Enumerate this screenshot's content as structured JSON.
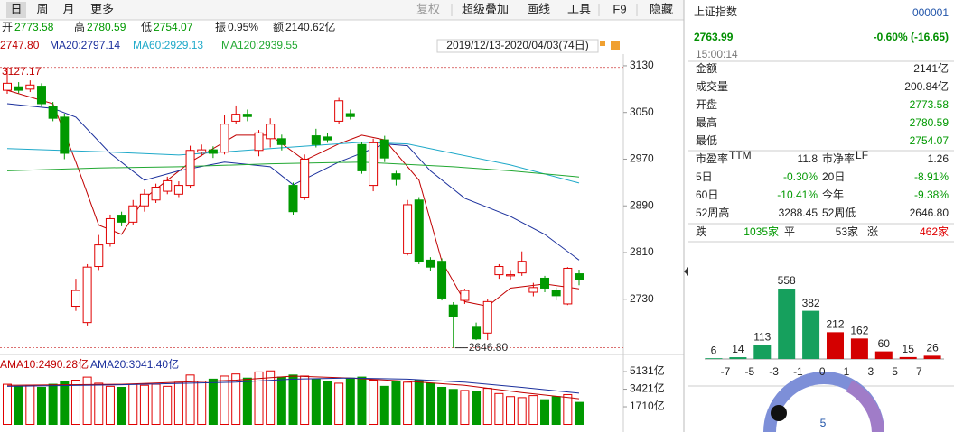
{
  "toolbar": {
    "tabs": [
      "日",
      "周",
      "月",
      "更多"
    ],
    "tools": [
      "复权",
      "超级叠加",
      "画线",
      "工具",
      "F9",
      "隐藏"
    ]
  },
  "quote_bar": [
    {
      "label": "开",
      "value": "2773.58",
      "color": "#009900"
    },
    {
      "label": "高",
      "value": "2780.59",
      "color": "#009900"
    },
    {
      "label": "低",
      "value": "2754.07",
      "color": "#009900"
    },
    {
      "label": "振",
      "value": "0.95%",
      "color": "#222222"
    },
    {
      "label": "额",
      "value": "2140.62亿",
      "color": "#222222"
    }
  ],
  "chart_data": {
    "type": "candlestick",
    "date_range": "2019/12/13-2020/04/03(74日)",
    "up_color": "#e00000",
    "down_color": "#009900",
    "open": [
      3088,
      3094,
      3090,
      3095,
      3060,
      3042,
      2718,
      2690,
      2786,
      2826,
      2874,
      2862,
      2890,
      2900,
      2915,
      2910,
      2925,
      2982,
      2986,
      2982,
      3035,
      3047,
      2985,
      3005,
      3005,
      2925,
      2905,
      3010,
      3008,
      3035,
      3048,
      2995,
      2925,
      3003,
      2945,
      2808,
      2900,
      2797,
      2795,
      2720,
      2728,
      2682,
      2672,
      2772,
      2770,
      2775,
      2742,
      2766,
      2745,
      2722,
      2773.58
    ],
    "close": [
      3100,
      3088,
      3097,
      3065,
      3040,
      2980,
      2745,
      2785,
      2823,
      2868,
      2862,
      2890,
      2910,
      2922,
      2933,
      2925,
      2985,
      2986,
      2980,
      3030,
      3047,
      3043,
      3015,
      3030,
      2995,
      2880,
      2970,
      2995,
      3003,
      3070,
      3043,
      2950,
      2998,
      2972,
      2935,
      2892,
      2795,
      2785,
      2732,
      2700,
      2745,
      2662,
      2726,
      2786,
      2772,
      2795,
      2750,
      2749,
      2736,
      2783,
      2763.99
    ],
    "high": [
      3127.17,
      3102,
      3105,
      3100,
      3068,
      3048,
      2765,
      2790,
      2840,
      2875,
      2880,
      2900,
      2918,
      2928,
      2940,
      2932,
      2993,
      2995,
      2992,
      3045,
      3062,
      3055,
      3020,
      3040,
      3012,
      2930,
      2978,
      3022,
      3015,
      3075,
      3055,
      3000,
      3005,
      3010,
      2950,
      2900,
      2905,
      2802,
      2800,
      2725,
      2748,
      2690,
      2730,
      2790,
      2780,
      2812,
      2758,
      2770,
      2750,
      2785,
      2780.59
    ],
    "low": [
      3082,
      3083,
      3085,
      3060,
      3035,
      2970,
      2710,
      2685,
      2780,
      2820,
      2855,
      2858,
      2880,
      2895,
      2910,
      2905,
      2920,
      2975,
      2972,
      2978,
      3030,
      3035,
      2975,
      2990,
      2985,
      2875,
      2900,
      2990,
      2998,
      3030,
      3038,
      2945,
      2915,
      2965,
      2925,
      2805,
      2790,
      2778,
      2728,
      2646.8,
      2722,
      2660,
      2660,
      2765,
      2762,
      2770,
      2735,
      2742,
      2728,
      2720,
      2754.07
    ],
    "ylim": [
      2640,
      3150
    ],
    "yticks": [
      2730,
      2810,
      2890,
      2970,
      3050,
      3130
    ],
    "annotations": [
      {
        "value": 3127.17,
        "label": "3127.17"
      },
      {
        "value": 2646.8,
        "label": "2646.80"
      }
    ],
    "moving_averages": [
      {
        "name": "2747.80",
        "color": "#c00000",
        "x": [
          0,
          4,
          6,
          8,
          10,
          12,
          16,
          20,
          23,
          26,
          29,
          31,
          33,
          36,
          38,
          40,
          42,
          44,
          47,
          50
        ],
        "values": [
          3088,
          3065,
          2965,
          2857,
          2841,
          2903,
          2965,
          3011,
          3011,
          2968,
          2996,
          3011,
          3003,
          2934,
          2795,
          2726,
          2718,
          2749,
          2756,
          2747.8
        ]
      },
      {
        "name": "MA20:2797.14",
        "color": "#1a2f9c",
        "x": [
          0,
          4,
          6,
          9,
          12,
          15,
          19,
          23,
          25,
          29,
          33,
          35,
          37,
          40,
          44,
          47,
          50
        ],
        "values": [
          3065,
          3057,
          3042,
          2980,
          2934,
          2950,
          2965,
          2957,
          2926,
          2965,
          2996,
          2993,
          2950,
          2903,
          2872,
          2841,
          2797.14
        ]
      },
      {
        "name": "MA60:2929.13",
        "color": "#1fa9c9",
        "x": [
          0,
          8,
          15,
          23,
          31,
          35,
          39,
          44,
          50
        ],
        "values": [
          2988,
          2983,
          2977,
          2988,
          2999,
          2996,
          2980,
          2960,
          2929.13
        ]
      },
      {
        "name": "MA120:2939.55",
        "color": "#22a832",
        "x": [
          0,
          8,
          15,
          23,
          31,
          39,
          44,
          50
        ],
        "values": [
          2950,
          2955,
          2957,
          2962,
          2965,
          2957,
          2950,
          2939.55
        ]
      }
    ],
    "volume": {
      "values": [
        3900,
        3700,
        3800,
        3600,
        3900,
        4200,
        4300,
        4600,
        4000,
        3700,
        3600,
        3900,
        3800,
        3900,
        3700,
        4100,
        4800,
        4200,
        4400,
        4700,
        4900,
        4500,
        5100,
        5200,
        4600,
        4800,
        4700,
        4400,
        4200,
        4000,
        4500,
        4600,
        4300,
        3700,
        4200,
        4100,
        4300,
        4000,
        3600,
        3400,
        3300,
        3200,
        3500,
        3000,
        2700,
        2600,
        2800,
        2400,
        2700,
        2900,
        2140.62
      ],
      "ylim": [
        0,
        5750
      ],
      "yticks": [
        {
          "value": 1710,
          "label": "1710亿"
        },
        {
          "value": 3421,
          "label": "3421亿"
        },
        {
          "value": 5131,
          "label": "5131亿"
        }
      ],
      "averages": [
        {
          "name": "AMA10:2490.28亿",
          "color": "#c00000",
          "x": [
            0,
            10,
            20,
            25,
            30,
            35,
            40,
            45,
            50
          ],
          "values": [
            3800,
            3900,
            4300,
            4700,
            4500,
            4200,
            3800,
            3100,
            2490.28
          ]
        },
        {
          "name": "AMA20:3041.40亿",
          "color": "#1a2f9c",
          "x": [
            0,
            10,
            20,
            25,
            30,
            35,
            40,
            45,
            50
          ],
          "values": [
            3700,
            3850,
            4100,
            4400,
            4500,
            4400,
            4100,
            3600,
            3041.4
          ]
        }
      ]
    }
  },
  "quote_panel": {
    "name": "上证指数",
    "code": "000001",
    "price": "2763.99",
    "change": "-0.60% (-16.65)",
    "time": "15:00:14",
    "rows": [
      {
        "label": "金额",
        "value": "2141亿",
        "color": "#222222"
      },
      {
        "label": "成交量",
        "value": "200.84亿",
        "color": "#222222"
      },
      {
        "label": "开盘",
        "value": "2773.58",
        "color": "#009900"
      },
      {
        "label": "最高",
        "value": "2780.59",
        "color": "#009900"
      },
      {
        "label": "最低",
        "value": "2754.07",
        "color": "#009900"
      }
    ],
    "stats": [
      [
        {
          "label": "市盈率",
          "sup": "TTM",
          "value": "11.8",
          "color": "#222222"
        },
        {
          "label": "市净率",
          "sup": "LF",
          "value": "1.26",
          "color": "#222222"
        }
      ],
      [
        {
          "label": "5日",
          "value": "-0.30%",
          "color": "#009900"
        },
        {
          "label": "20日",
          "value": "-8.91%",
          "color": "#009900"
        }
      ],
      [
        {
          "label": "60日",
          "value": "-10.41%",
          "color": "#009900"
        },
        {
          "label": "今年",
          "value": "-9.38%",
          "color": "#009900"
        }
      ],
      [
        {
          "label": "52周高",
          "value": "3288.45",
          "color": "#222222"
        },
        {
          "label": "52周低",
          "value": "2646.80",
          "color": "#222222"
        }
      ]
    ],
    "breadth": [
      {
        "label": "跌",
        "value": "1035家",
        "color": "#009900"
      },
      {
        "label": "平",
        "value": "53家",
        "color": "#222222"
      },
      {
        "label": "涨",
        "value": "462家",
        "color": "#e00000"
      }
    ]
  },
  "breadth_distribution": {
    "values": [
      6,
      14,
      113,
      558,
      382,
      212,
      162,
      60,
      15,
      26
    ],
    "colors": [
      "#16a05d",
      "#16a05d",
      "#16a05d",
      "#16a05d",
      "#16a05d",
      "#d40000",
      "#d40000",
      "#d40000",
      "#d40000",
      "#d40000"
    ],
    "axis_labels": [
      "-7",
      "-5",
      "-3",
      "-1",
      "0",
      "1",
      "3",
      "5",
      "7"
    ]
  },
  "gauge": {
    "label": "5"
  }
}
